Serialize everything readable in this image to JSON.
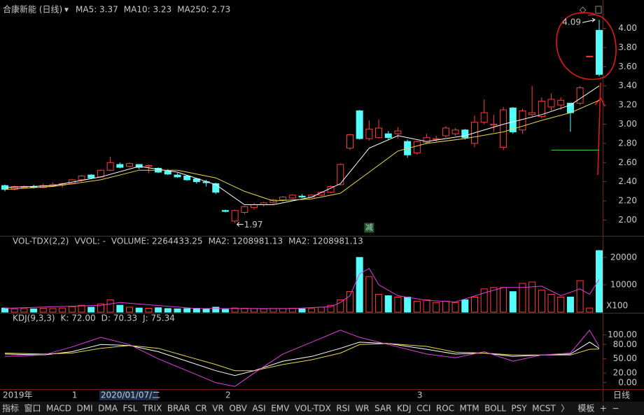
{
  "header": {
    "title": "合康新能 (日线)"
  },
  "chart_data": [
    {
      "type": "candlestick",
      "legend": [
        {
          "text": "MA5: 3.37",
          "color": "#ffffff"
        },
        {
          "text": "MA10: 3.23",
          "color": "#e8d84a"
        },
        {
          "text": "MA250: 2.73",
          "color": "#3ec83e"
        }
      ],
      "up_color": "#ff3c3c",
      "down_color": "#54fcfc",
      "open": [
        2.36,
        2.32,
        2.34,
        2.35,
        2.34,
        2.36,
        2.37,
        2.38,
        2.42,
        2.47,
        2.45,
        2.52,
        2.58,
        2.56,
        2.58,
        2.56,
        2.54,
        2.51,
        2.47,
        2.46,
        2.43,
        2.4,
        2.38,
        2.1,
        1.99,
        2.08,
        2.13,
        2.16,
        2.18,
        2.21,
        2.23,
        2.25,
        2.24,
        2.26,
        2.29,
        2.37,
        2.75,
        3.14,
        2.85,
        2.86,
        2.9,
        2.9,
        2.82,
        2.7,
        2.81,
        2.84,
        2.88,
        2.9,
        2.94,
        2.8,
        3.02,
        2.99,
        2.76,
        3.17,
        2.94,
        3.1,
        3.08,
        3.18,
        3.2,
        3.22,
        3.22,
        3.71,
        3.98
      ],
      "high": [
        2.37,
        2.36,
        2.36,
        2.37,
        2.38,
        2.39,
        2.39,
        2.43,
        2.47,
        2.48,
        2.53,
        2.66,
        2.6,
        2.6,
        2.58,
        2.58,
        2.55,
        2.53,
        2.49,
        2.47,
        2.44,
        2.42,
        2.39,
        2.11,
        2.11,
        2.15,
        2.18,
        2.19,
        2.22,
        2.25,
        2.27,
        2.27,
        2.27,
        2.3,
        2.36,
        2.59,
        2.9,
        3.15,
        3.04,
        3.05,
        2.93,
        2.97,
        2.84,
        2.83,
        2.9,
        2.88,
        2.98,
        2.96,
        2.95,
        3.09,
        3.26,
        3.1,
        3.18,
        3.18,
        3.16,
        3.4,
        3.28,
        3.32,
        3.28,
        3.22,
        3.4,
        3.71,
        4.09
      ],
      "low": [
        2.3,
        2.31,
        2.33,
        2.33,
        2.33,
        2.35,
        2.34,
        2.37,
        2.4,
        2.43,
        2.44,
        2.51,
        2.54,
        2.55,
        2.53,
        2.49,
        2.49,
        2.47,
        2.44,
        2.41,
        2.38,
        2.35,
        2.27,
        2.08,
        1.97,
        2.06,
        2.11,
        2.14,
        2.17,
        2.19,
        2.22,
        2.23,
        2.23,
        2.25,
        2.28,
        2.36,
        2.73,
        2.84,
        2.83,
        2.85,
        2.84,
        2.85,
        2.65,
        2.68,
        2.79,
        2.82,
        2.86,
        2.88,
        2.84,
        2.76,
        3.0,
        2.92,
        2.73,
        2.9,
        2.9,
        3.08,
        3.06,
        3.14,
        3.15,
        2.92,
        3.2,
        3.71,
        3.5
      ],
      "close": [
        2.32,
        2.35,
        2.35,
        2.34,
        2.36,
        2.37,
        2.38,
        2.42,
        2.46,
        2.44,
        2.52,
        2.6,
        2.55,
        2.59,
        2.55,
        2.57,
        2.5,
        2.48,
        2.45,
        2.42,
        2.4,
        2.39,
        2.29,
        2.09,
        2.1,
        2.14,
        2.16,
        2.18,
        2.21,
        2.24,
        2.26,
        2.24,
        2.26,
        2.29,
        2.35,
        2.58,
        2.89,
        2.85,
        2.95,
        2.96,
        2.86,
        2.93,
        2.68,
        2.82,
        2.86,
        2.85,
        2.96,
        2.94,
        2.86,
        3.02,
        3.12,
        3.0,
        3.15,
        2.92,
        3.14,
        3.12,
        3.24,
        3.26,
        3.25,
        3.12,
        3.38,
        3.71,
        3.52
      ],
      "lines": [
        {
          "color": "#ffffff",
          "x": [
            0,
            5,
            10,
            14,
            18,
            22,
            25,
            28,
            32,
            35,
            38,
            41,
            44,
            48,
            52,
            56,
            59,
            62
          ],
          "values": [
            2.34,
            2.36,
            2.45,
            2.56,
            2.5,
            2.37,
            2.16,
            2.16,
            2.24,
            2.38,
            2.75,
            2.88,
            2.82,
            2.88,
            3.0,
            3.1,
            3.2,
            3.4
          ]
        },
        {
          "color": "#e8d84a",
          "x": [
            0,
            5,
            10,
            14,
            18,
            22,
            25,
            28,
            32,
            35,
            38,
            41,
            44,
            48,
            52,
            56,
            59,
            62
          ],
          "values": [
            2.32,
            2.35,
            2.42,
            2.52,
            2.52,
            2.44,
            2.3,
            2.2,
            2.22,
            2.28,
            2.5,
            2.72,
            2.8,
            2.85,
            2.92,
            3.04,
            3.12,
            3.25
          ]
        },
        {
          "color": "#3ec83e",
          "x": [
            57,
            62
          ],
          "values": [
            2.73,
            2.73
          ]
        }
      ],
      "ylim": [
        1.85,
        4.15
      ],
      "yticks": [
        {
          "value": 2,
          "label": "2.00"
        },
        {
          "value": 2.2,
          "label": "2.20"
        },
        {
          "value": 2.4,
          "label": "2.40"
        },
        {
          "value": 2.6,
          "label": "2.60"
        },
        {
          "value": 2.8,
          "label": "2.80"
        },
        {
          "value": 3,
          "label": "3.00"
        },
        {
          "value": 3.2,
          "label": "3.20"
        },
        {
          "value": 3.4,
          "label": "3.40"
        },
        {
          "value": 3.6,
          "label": "3.60"
        },
        {
          "value": 3.8,
          "label": "3.80"
        },
        {
          "value": 4,
          "label": "4.00"
        }
      ],
      "annotations": [
        {
          "text": "4.09",
          "x": 62,
          "y": 4.09
        },
        {
          "text": "1.97",
          "x": 24,
          "y": 1.97
        },
        {
          "text": "减",
          "x": 38,
          "y": 1.92
        }
      ]
    },
    {
      "type": "bar",
      "legend": [
        {
          "text": "VOL-TDX(2,2)",
          "color": "#c8c8c8"
        },
        {
          "text": "VVOL: -",
          "color": "#c8c8c8"
        },
        {
          "text": "VOLUME: 2264433.25",
          "color": "#e8b830"
        },
        {
          "text": "MA2: 1208981.13",
          "color": "#e8b830"
        },
        {
          "text": "MA2: 1208981.13",
          "color": "#e040e0"
        }
      ],
      "values": [
        1500,
        1200,
        1300,
        1200,
        1400,
        1300,
        1500,
        2000,
        2500,
        1800,
        3000,
        4500,
        2500,
        1800,
        1500,
        1400,
        1600,
        1300,
        1200,
        1300,
        1400,
        1200,
        1800,
        1000,
        1500,
        1400,
        1300,
        1200,
        1300,
        1300,
        1400,
        1200,
        1300,
        1800,
        2500,
        4500,
        7500,
        20000,
        13000,
        6500,
        6000,
        5500,
        5500,
        4000,
        4500,
        3500,
        4000,
        3500,
        4500,
        5500,
        8500,
        9000,
        9000,
        7500,
        10500,
        11000,
        8000,
        6500,
        5500,
        5500,
        11500,
        1500,
        22500
      ],
      "line": {
        "color": "#e040e0",
        "x": [
          0,
          10,
          12,
          20,
          30,
          34,
          35,
          36,
          37,
          38,
          39,
          41,
          44,
          47,
          50,
          52,
          54,
          56,
          58,
          60,
          61,
          62
        ],
        "values": [
          1400,
          2500,
          3500,
          1300,
          1300,
          2000,
          3500,
          6000,
          14000,
          16000,
          10000,
          6000,
          4300,
          3700,
          7000,
          9000,
          9000,
          9500,
          6000,
          8500,
          6500,
          12000
        ]
      },
      "ylim": [
        0,
        22000
      ],
      "yticks": [
        10000,
        20000
      ],
      "unit": "X100"
    },
    {
      "type": "line",
      "legend": [
        {
          "text": "KDJ(9,3,3)",
          "color": "#c8c8c8"
        },
        {
          "text": "K: 72.00",
          "color": "#ffffff"
        },
        {
          "text": "D: 70.33",
          "color": "#e8d84a"
        },
        {
          "text": "J: 75.34",
          "color": "#e040e0"
        }
      ],
      "series": [
        {
          "color": "#ffffff",
          "x": [
            0,
            4,
            7,
            10,
            13,
            16,
            19,
            22,
            24,
            26,
            29,
            32,
            35,
            37,
            40,
            44,
            47,
            50,
            53,
            56,
            59,
            61,
            62
          ],
          "values": [
            60,
            58,
            65,
            80,
            78,
            65,
            45,
            25,
            15,
            25,
            45,
            55,
            72,
            85,
            82,
            70,
            60,
            62,
            55,
            58,
            60,
            85,
            72
          ]
        },
        {
          "color": "#e8d84a",
          "x": [
            0,
            4,
            7,
            10,
            13,
            16,
            19,
            22,
            24,
            26,
            29,
            32,
            35,
            37,
            40,
            44,
            47,
            50,
            53,
            56,
            59,
            61,
            62
          ],
          "values": [
            62,
            60,
            62,
            72,
            78,
            72,
            55,
            38,
            25,
            25,
            38,
            48,
            62,
            80,
            82,
            76,
            64,
            62,
            58,
            58,
            58,
            70,
            70.33
          ]
        },
        {
          "color": "#e040e0",
          "x": [
            0,
            4,
            7,
            10,
            13,
            16,
            19,
            22,
            24,
            26,
            29,
            32,
            35,
            37,
            40,
            44,
            47,
            50,
            53,
            56,
            59,
            61,
            62
          ],
          "values": [
            55,
            58,
            75,
            95,
            80,
            50,
            25,
            0,
            -8,
            20,
            60,
            85,
            110,
            95,
            80,
            60,
            52,
            65,
            45,
            58,
            62,
            110,
            75.34
          ]
        }
      ],
      "ylim": [
        -15,
        120
      ],
      "yticks": [
        {
          "value": 0,
          "label": "0.00"
        },
        {
          "value": 20,
          "label": "20.00"
        },
        {
          "value": 50,
          "label": "50.00"
        },
        {
          "value": 80,
          "label": "80.00"
        },
        {
          "value": 100,
          "label": "100.00"
        }
      ]
    }
  ],
  "timeline": {
    "labels": [
      "2019年",
      "1",
      "2020/01/07/二",
      "2",
      "3"
    ],
    "x": [
      0,
      7,
      10,
      23,
      43
    ],
    "highlight": 2
  },
  "tabs": [
    "指标",
    "窗口",
    "MACD",
    "DMI",
    "DMA",
    "FSL",
    "TRIX",
    "BRAR",
    "CR",
    "VR",
    "OBV",
    "ASI",
    "EMV",
    "VOL-TDX",
    "RSI",
    "WR",
    "SAR",
    "KDJ",
    "CCI",
    "ROC",
    "MTM",
    "BOLL",
    "PSY",
    "MCST",
    "〉",
    "模板",
    "+",
    "−"
  ],
  "tabs_active": 17,
  "period": "日线"
}
